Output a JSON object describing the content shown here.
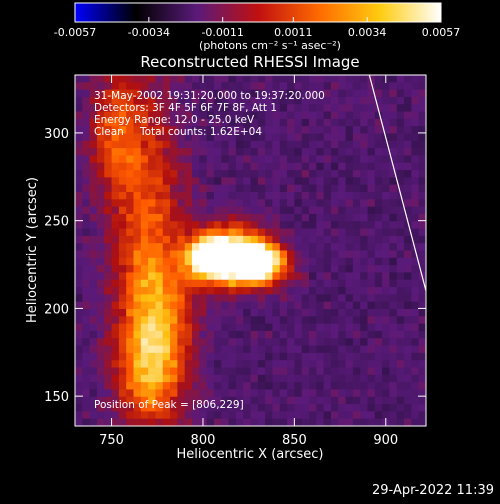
{
  "colorbar": {
    "tick_labels": [
      "-0.0057",
      "-0.0034",
      "-0.0011",
      "0.0011",
      "0.0034",
      "0.0057"
    ],
    "tick_values": [
      -0.0057,
      -0.0034,
      -0.0011,
      0.0011,
      0.0034,
      0.0057
    ],
    "range": [
      -0.0057,
      0.0057
    ],
    "unit_label": "(photons cm⁻² s⁻¹ asec⁻²)",
    "colormap_stops": [
      "#0000ff",
      "#000000",
      "#5a1a7a",
      "#c01010",
      "#ff6a00",
      "#ffcc10",
      "#ffffff"
    ]
  },
  "chart_data": {
    "type": "heatmap",
    "title": "Reconstructed RHESSI Image",
    "xlabel": "Heliocentric X (arcsec)",
    "ylabel": "Heliocentric Y (arcsec)",
    "xlim": [
      730,
      922
    ],
    "ylim": [
      133,
      333
    ],
    "x_ticks": [
      750,
      800,
      850,
      900
    ],
    "y_ticks": [
      150,
      200,
      250,
      300
    ],
    "x_tick_labels": [
      "750",
      "800",
      "850",
      "900"
    ],
    "y_tick_labels": [
      "150",
      "200",
      "250",
      "300"
    ],
    "annotations": {
      "time_range": "31-May-2002 19:31:20.000 to 19:37:20.000",
      "detectors": "Detectors: 3F 4F 5F 6F 7F 8F, Att 1",
      "energy_range": "Energy Range: 12.0 - 25.0 keV",
      "clean_label": "Clean",
      "total_counts": "Total counts: 1.62E+04",
      "peak": "Position of Peak = [806,229]"
    },
    "peak_position": [
      806,
      229
    ],
    "limb_line": [
      [
        891,
        333
      ],
      [
        922,
        210
      ]
    ],
    "sources": [
      {
        "x": 804,
        "y": 229,
        "intensity": 1.0,
        "sx": 8,
        "sy": 7
      },
      {
        "x": 831,
        "y": 227,
        "intensity": 0.92,
        "sx": 10,
        "sy": 7
      },
      {
        "x": 816,
        "y": 236,
        "intensity": 0.65,
        "sx": 14,
        "sy": 9
      },
      {
        "x": 818,
        "y": 218,
        "intensity": 0.5,
        "sx": 16,
        "sy": 7
      },
      {
        "x": 770,
        "y": 250,
        "intensity": 0.38,
        "sx": 14,
        "sy": 55
      },
      {
        "x": 775,
        "y": 190,
        "intensity": 0.42,
        "sx": 14,
        "sy": 30
      },
      {
        "x": 770,
        "y": 160,
        "intensity": 0.35,
        "sx": 12,
        "sy": 20
      },
      {
        "x": 752,
        "y": 300,
        "intensity": 0.36,
        "sx": 10,
        "sy": 25
      }
    ]
  },
  "footer": {
    "timestamp": "29-Apr-2022 11:39"
  }
}
